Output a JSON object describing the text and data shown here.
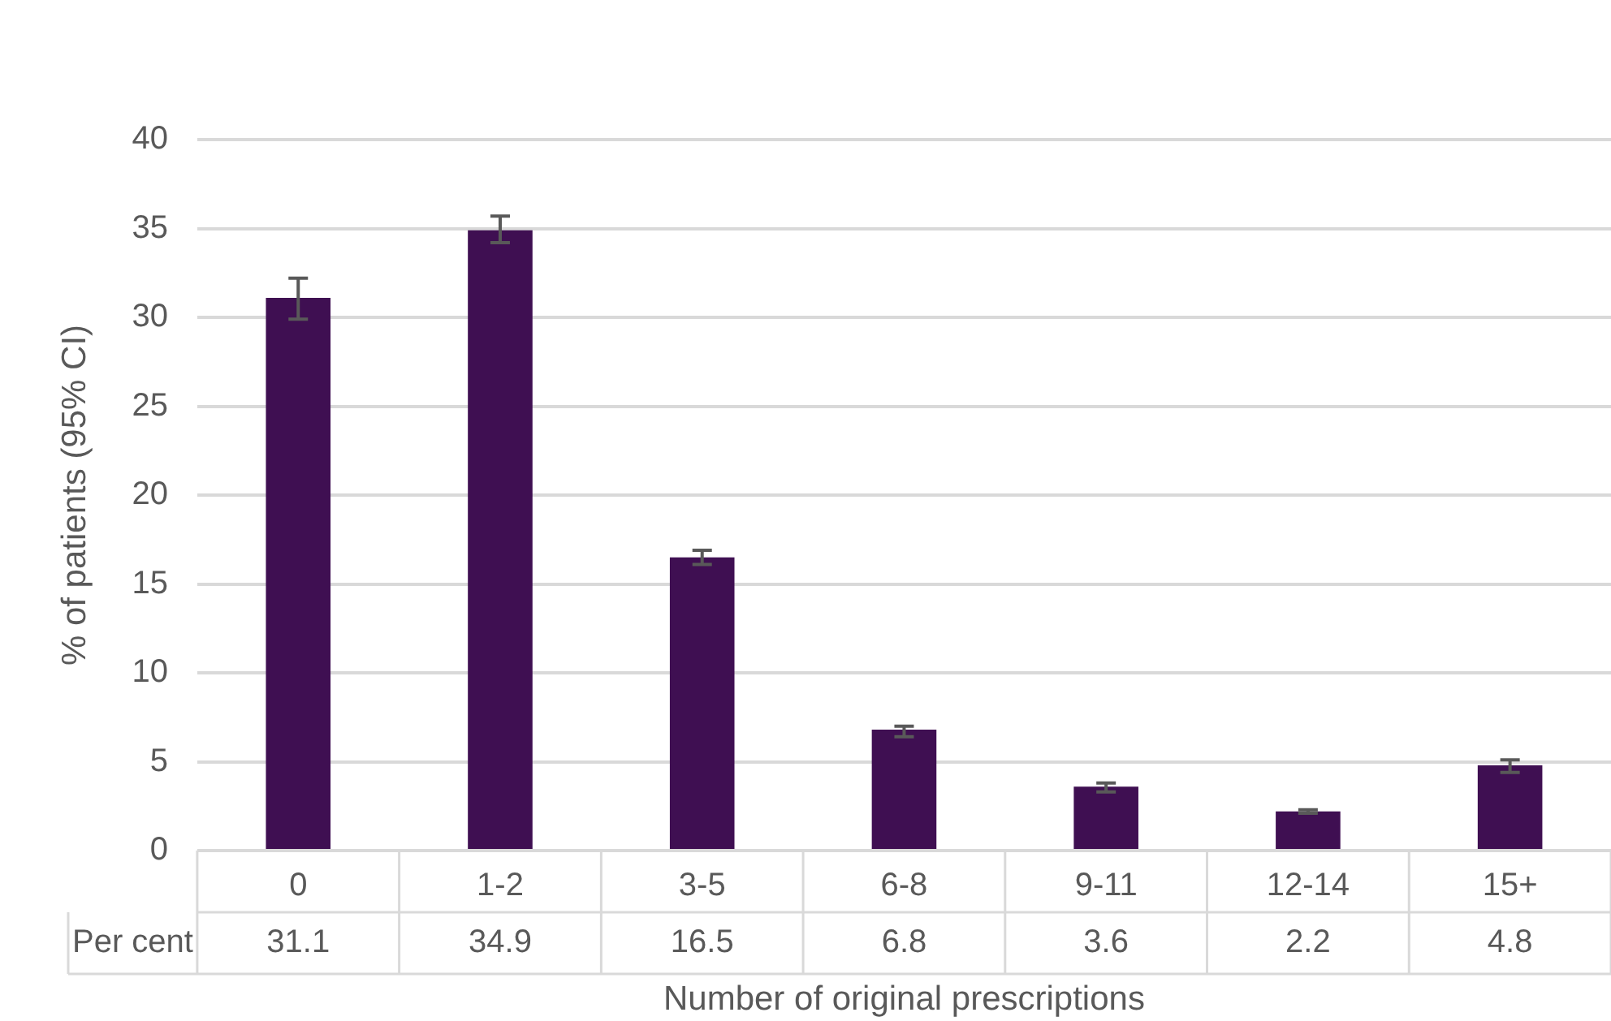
{
  "chart_data": {
    "type": "bar",
    "xlabel": "Number of original prescriptions",
    "ylabel": "% of patients (95% CI)",
    "categories": [
      "0",
      "1-2",
      "3-5",
      "6-8",
      "9-11",
      "12-14",
      "15+"
    ],
    "values": [
      31.1,
      34.9,
      16.5,
      6.8,
      3.6,
      2.2,
      4.8
    ],
    "errors": [
      [
        29.9,
        32.2
      ],
      [
        34.2,
        35.7
      ],
      [
        16.1,
        16.9
      ],
      [
        6.4,
        7.0
      ],
      [
        3.3,
        3.8
      ],
      [
        2.1,
        2.3
      ],
      [
        4.4,
        5.1
      ]
    ],
    "color": "#3f0f52",
    "ylim": [
      0,
      40
    ],
    "yticks": [
      0,
      5,
      10,
      15,
      20,
      25,
      30,
      35,
      40
    ],
    "grid": "y",
    "legend": false,
    "data_labels": true,
    "annotations": [
      "Per cent"
    ]
  }
}
